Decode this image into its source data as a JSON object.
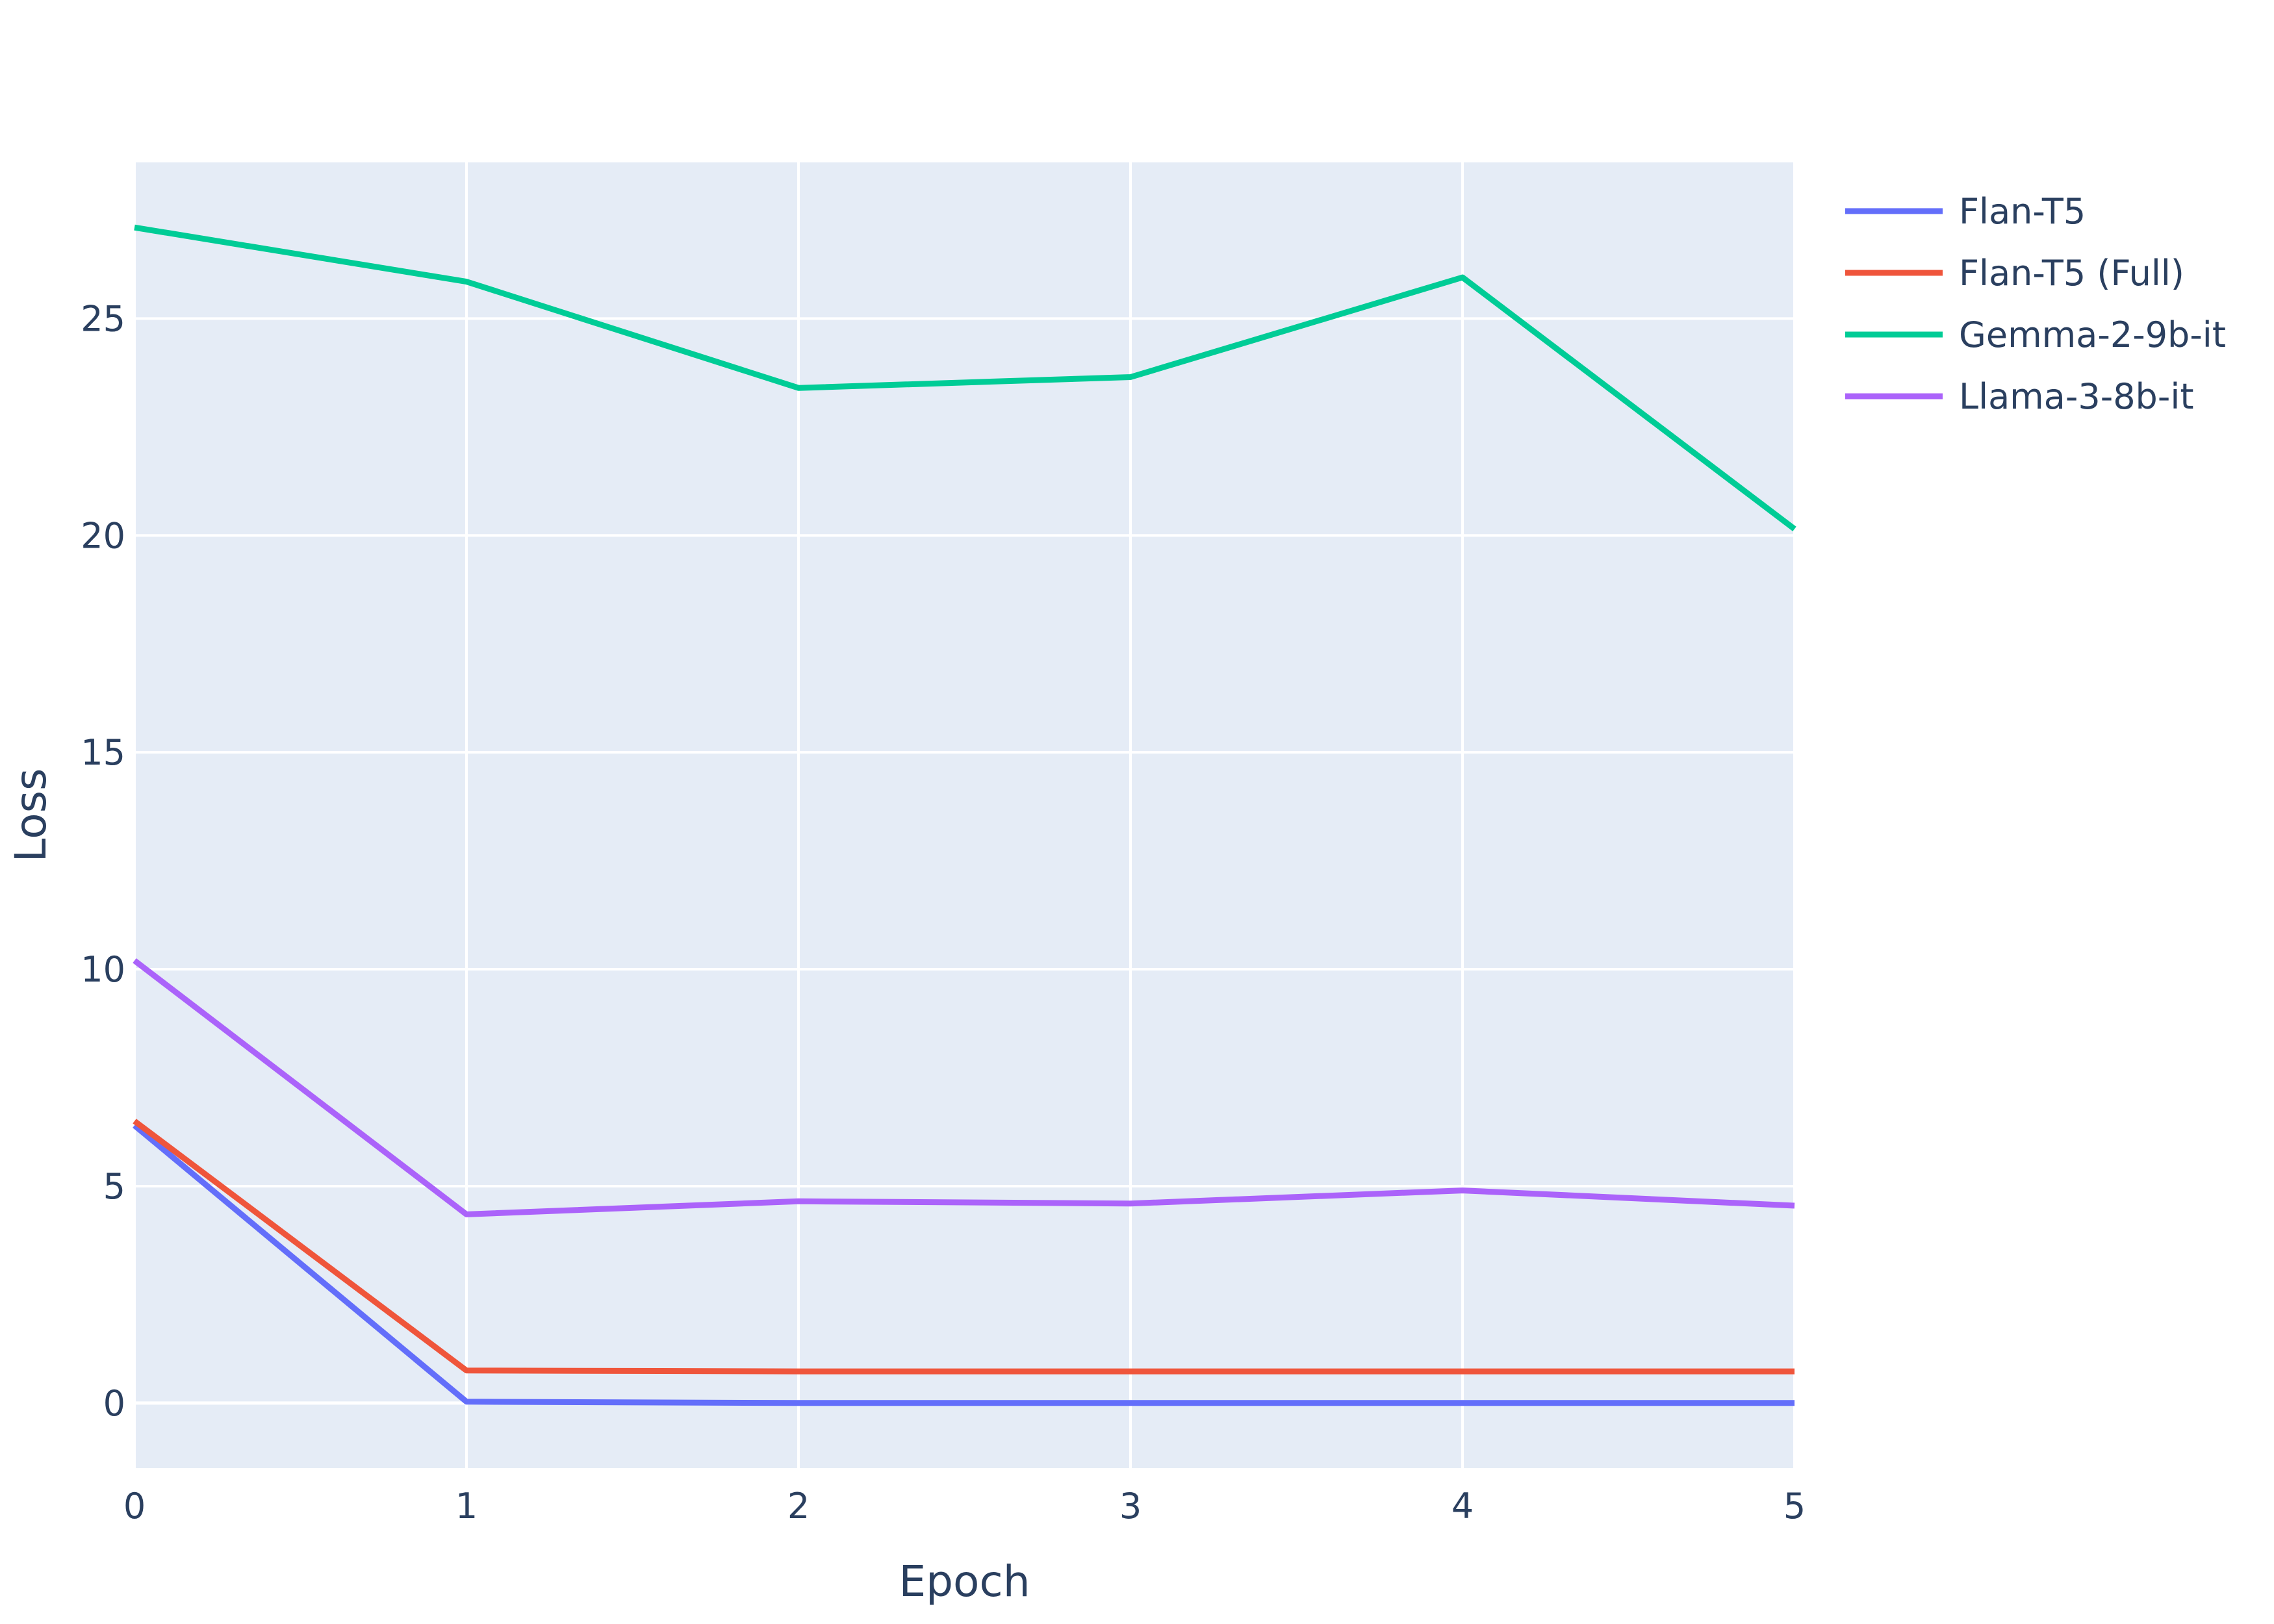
{
  "chart_data": {
    "type": "line",
    "title": "",
    "xlabel": "Epoch",
    "ylabel": "Loss",
    "x": [
      0,
      1,
      2,
      3,
      4,
      5
    ],
    "xlim": [
      0,
      5
    ],
    "ylim": [
      -1.5,
      28.6
    ],
    "x_ticks": [
      0,
      1,
      2,
      3,
      4,
      5
    ],
    "y_ticks": [
      0,
      5,
      10,
      15,
      20,
      25
    ],
    "grid": true,
    "legend_position": "top-right",
    "plot_background": "#e5ecf6",
    "grid_color": "#ffffff",
    "series": [
      {
        "name": "Flan-T5",
        "color": "#636efa",
        "values": [
          6.4,
          0.03,
          0.0,
          0.0,
          0.0,
          0.0
        ]
      },
      {
        "name": "Flan-T5 (Full)",
        "color": "#ef553b",
        "values": [
          6.5,
          0.75,
          0.73,
          0.73,
          0.73,
          0.73
        ]
      },
      {
        "name": "Gemma-2-9b-it",
        "color": "#00cc96",
        "values": [
          27.1,
          25.85,
          23.4,
          23.65,
          25.95,
          20.15
        ]
      },
      {
        "name": "Llama-3-8b-it",
        "color": "#ab63fa",
        "values": [
          10.2,
          4.35,
          4.65,
          4.6,
          4.9,
          4.55
        ]
      }
    ]
  }
}
